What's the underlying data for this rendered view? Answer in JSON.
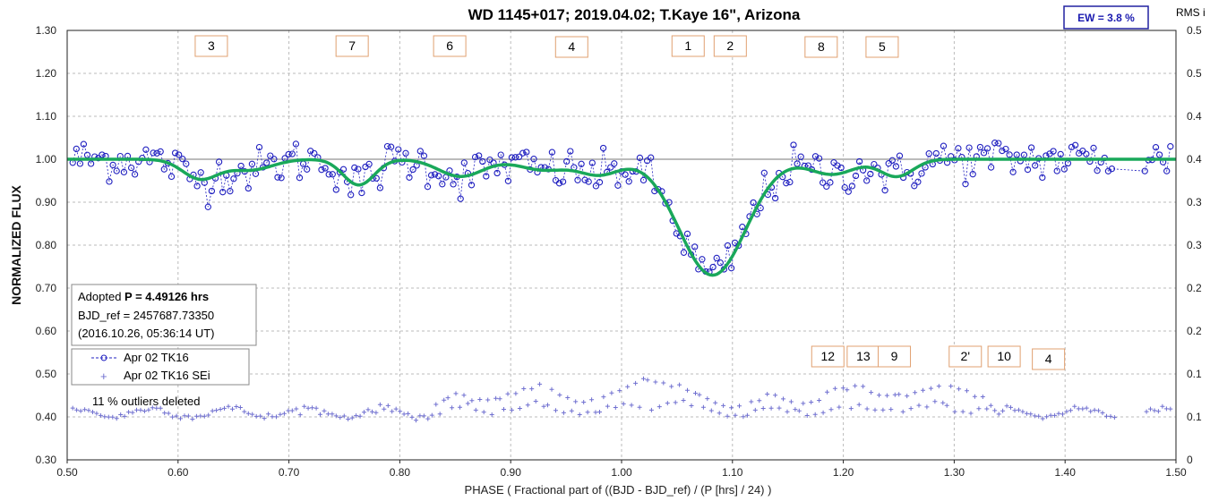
{
  "chart_data": {
    "type": "scatter",
    "title": "WD 1145+017; 2019.04.02; T.Kaye 16\", Arizona",
    "xlabel": "PHASE ( Fractional part of ((BJD - BJD_ref) / (P [hrs] / 24) )",
    "ylabel": "NORMALIZED FLUX",
    "y2label": "RMS i",
    "xlim": [
      0.5,
      1.5
    ],
    "ylim": [
      0.3,
      1.3
    ],
    "y2lim": [
      0.0,
      0.5
    ],
    "x_ticks": [
      "0.50",
      "0.60",
      "0.70",
      "0.80",
      "0.90",
      "1.00",
      "1.10",
      "1.20",
      "1.30",
      "1.40",
      "1.50"
    ],
    "y_ticks": [
      "0.30",
      "0.40",
      "0.50",
      "0.60",
      "0.70",
      "0.80",
      "0.90",
      "1.00",
      "1.10",
      "1.20",
      "1.30"
    ],
    "y2_ticks": [
      "0",
      "0.1",
      "0.1",
      "0.2",
      "0.2",
      "0.3",
      "0.3",
      "0.4",
      "0.4",
      "0.5",
      "0.5"
    ],
    "grid": true,
    "reference_line_y": 1.0,
    "ew_label": "EW =  3.8 %",
    "info_box": {
      "line1_prefix": "Adopted ",
      "line1_bold": "P = 4.49126 hrs",
      "line2": "BJD_ref = 2457687.73350",
      "line3": "(2016.10.26, 05:36:14 UT)"
    },
    "legend": [
      {
        "symbol": "- -o- -",
        "label": "Apr 02 TK16"
      },
      {
        "symbol": "+",
        "label": "Apr 02 TK16 SEi"
      }
    ],
    "outlier_note": "11 % outliers deleted",
    "label_boxes_top": [
      "3",
      "7",
      "6",
      "4",
      "1",
      "2",
      "8",
      "5"
    ],
    "label_boxes_bottom": [
      "12",
      "13",
      "9",
      "2'",
      "10",
      "4"
    ],
    "label_box_phase_top": [
      0.63,
      0.757,
      0.845,
      0.955,
      1.06,
      1.098,
      1.18,
      1.235
    ],
    "label_box_phase_bottom": [
      1.186,
      1.218,
      1.246,
      1.31,
      1.345,
      1.385
    ],
    "model_curve": {
      "baseline": 1.0,
      "dips": [
        {
          "center": 0.62,
          "depth": 0.045,
          "width": 0.016
        },
        {
          "center": 0.665,
          "depth": 0.025,
          "width": 0.02
        },
        {
          "center": 0.763,
          "depth": 0.06,
          "width": 0.014
        },
        {
          "center": 0.855,
          "depth": 0.04,
          "width": 0.02
        },
        {
          "center": 0.93,
          "depth": 0.025,
          "width": 0.022
        },
        {
          "center": 0.98,
          "depth": 0.035,
          "width": 0.018
        },
        {
          "center": 1.082,
          "depth": 0.27,
          "width": 0.03
        },
        {
          "center": 1.19,
          "depth": 0.035,
          "width": 0.02
        },
        {
          "center": 1.248,
          "depth": 0.04,
          "width": 0.015
        }
      ]
    },
    "series": [
      {
        "name": "Apr 02 TK16",
        "color": "#2020c0",
        "marker": "circle",
        "scatter_sigma": 0.028
      },
      {
        "name": "Apr 02 TK16 SEi",
        "color": "#7070d0",
        "marker": "plus",
        "x_range": [
          0.5,
          1.5
        ],
        "rms_baseline": 0.055,
        "rms_bumps": [
          {
            "center": 1.03,
            "height": 0.03,
            "width": 0.02
          },
          {
            "center": 0.92,
            "height": 0.015,
            "width": 0.03
          },
          {
            "center": 1.22,
            "height": 0.015,
            "width": 0.04
          },
          {
            "center": 1.3,
            "height": 0.02,
            "width": 0.015
          }
        ]
      }
    ],
    "colors": {
      "model": "#19a85a",
      "points": "#2020c0",
      "rms": "#7070d0",
      "ref_line": "#bbbbbb",
      "label_box_border": "#e0a070",
      "ew_border": "#2020a0"
    }
  }
}
